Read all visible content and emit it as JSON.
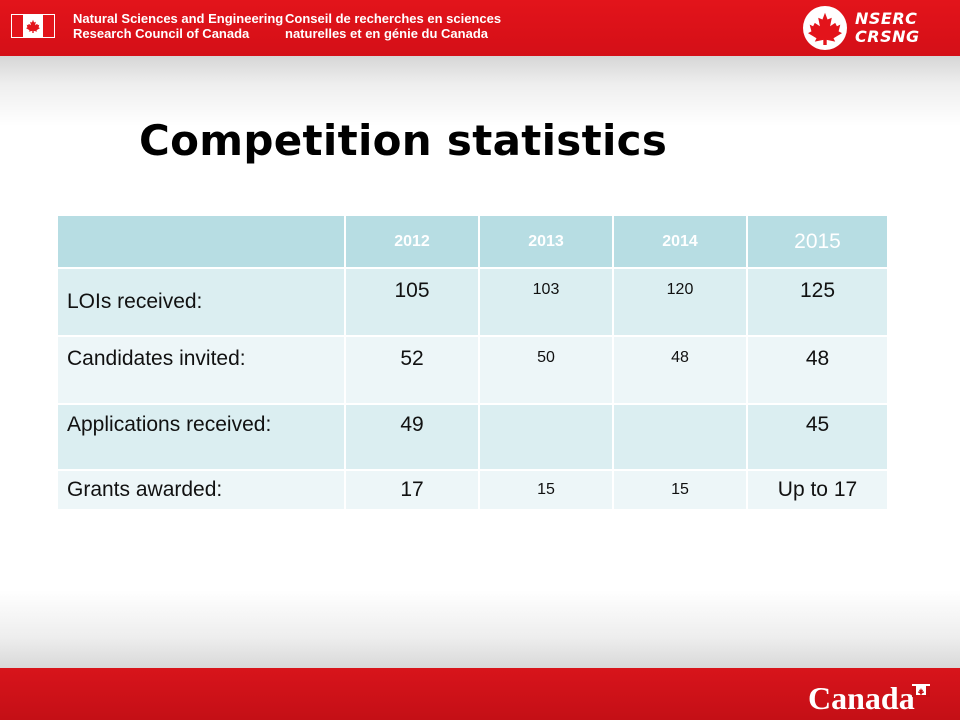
{
  "header": {
    "org_en_line1": "Natural Sciences and Engineering",
    "org_en_line2": "Research Council of Canada",
    "org_fr_line1": "Conseil de recherches en sciences",
    "org_fr_line2": "naturelles et en génie du Canada",
    "acronym_en": "NSERC",
    "acronym_fr": "CRSNG",
    "accent_color": "#e3141b"
  },
  "title": "Competition statistics",
  "table": {
    "columns": [
      "",
      "2012",
      "2013",
      "2014",
      "2015"
    ],
    "rows": [
      {
        "label": "LOIs received:",
        "values": [
          "105",
          "103",
          "120",
          "125"
        ]
      },
      {
        "label": "Candidates invited:",
        "values": [
          "52",
          "50",
          "48",
          "48"
        ]
      },
      {
        "label": "Applications received:",
        "values": [
          "49",
          "",
          "",
          "45"
        ]
      },
      {
        "label": "Grants awarded:",
        "values": [
          "17",
          "15",
          "15",
          "Up to 17"
        ]
      }
    ]
  },
  "footer": {
    "wordmark": "Canada"
  }
}
